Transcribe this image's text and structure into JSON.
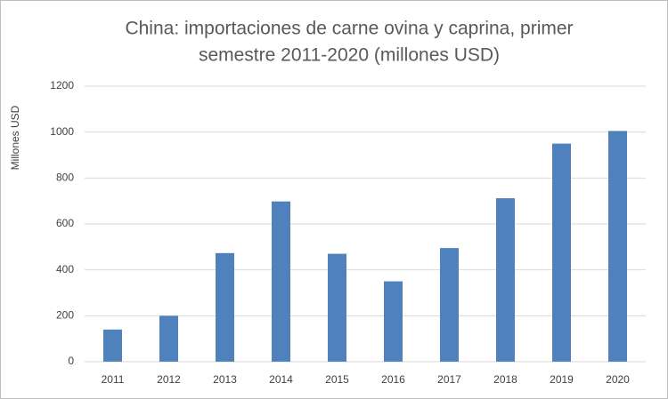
{
  "chart_data": {
    "type": "bar",
    "title": [
      "China: importaciones de carne ovina y caprina, primer",
      "semestre 2011-2020 (millones USD)"
    ],
    "y_label": "Millones USD",
    "categories": [
      "2011",
      "2012",
      "2013",
      "2014",
      "2015",
      "2016",
      "2017",
      "2018",
      "2019",
      "2020"
    ],
    "values": [
      140,
      200,
      473,
      698,
      470,
      350,
      495,
      712,
      950,
      1005
    ],
    "color": "#4f81bd",
    "ylim": [
      0,
      1200
    ],
    "yticks": [
      0,
      200,
      400,
      600,
      800,
      1000,
      1200
    ],
    "grid": true
  }
}
